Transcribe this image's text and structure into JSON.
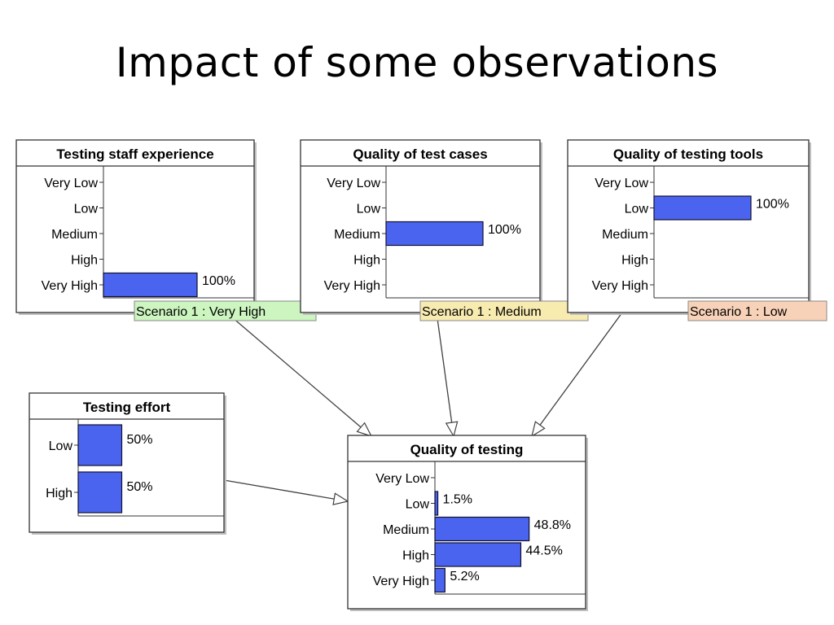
{
  "title": "Impact of some observations",
  "colors": {
    "bar": "#4a64f0",
    "bar_border": "#101030",
    "scenario_green": "#ccf5c0",
    "scenario_yellow": "#f8ebb0",
    "scenario_orange": "#f8d2b8"
  },
  "nodes": [
    {
      "id": "testing-staff-experience",
      "title": "Testing staff experience",
      "states": [
        {
          "label": "Very Low",
          "value": null,
          "value_label": ""
        },
        {
          "label": "Low",
          "value": null,
          "value_label": ""
        },
        {
          "label": "Medium",
          "value": null,
          "value_label": ""
        },
        {
          "label": "High",
          "value": null,
          "value_label": ""
        },
        {
          "label": "Very High",
          "value": 100,
          "value_label": "100%"
        }
      ],
      "scenario": "Scenario 1 : Very High"
    },
    {
      "id": "quality-of-test-cases",
      "title": "Quality of test cases",
      "states": [
        {
          "label": "Very Low",
          "value": null,
          "value_label": ""
        },
        {
          "label": "Low",
          "value": null,
          "value_label": ""
        },
        {
          "label": "Medium",
          "value": 100,
          "value_label": "100%"
        },
        {
          "label": "High",
          "value": null,
          "value_label": ""
        },
        {
          "label": "Very High",
          "value": null,
          "value_label": ""
        }
      ],
      "scenario": "Scenario 1 : Medium"
    },
    {
      "id": "quality-of-testing-tools",
      "title": "Quality of testing tools",
      "states": [
        {
          "label": "Very Low",
          "value": null,
          "value_label": ""
        },
        {
          "label": "Low",
          "value": 100,
          "value_label": "100%"
        },
        {
          "label": "Medium",
          "value": null,
          "value_label": ""
        },
        {
          "label": "High",
          "value": null,
          "value_label": ""
        },
        {
          "label": "Very High",
          "value": null,
          "value_label": ""
        }
      ],
      "scenario": "Scenario 1 : Low"
    },
    {
      "id": "testing-effort",
      "title": "Testing effort",
      "states": [
        {
          "label": "Low",
          "value": 50,
          "value_label": "50%"
        },
        {
          "label": "High",
          "value": 50,
          "value_label": "50%"
        }
      ],
      "scenario": ""
    },
    {
      "id": "quality-of-testing",
      "title": "Quality of testing",
      "states": [
        {
          "label": "Very Low",
          "value": 0,
          "value_label": ""
        },
        {
          "label": "Low",
          "value": 1.5,
          "value_label": "1.5%"
        },
        {
          "label": "Medium",
          "value": 48.8,
          "value_label": "48.8%"
        },
        {
          "label": "High",
          "value": 44.5,
          "value_label": "44.5%"
        },
        {
          "label": "Very High",
          "value": 5.2,
          "value_label": "5.2%"
        }
      ],
      "scenario": ""
    }
  ],
  "edges": [
    {
      "from": "testing-staff-experience",
      "to": "quality-of-testing"
    },
    {
      "from": "quality-of-test-cases",
      "to": "quality-of-testing"
    },
    {
      "from": "quality-of-testing-tools",
      "to": "quality-of-testing"
    },
    {
      "from": "testing-effort",
      "to": "quality-of-testing"
    }
  ]
}
